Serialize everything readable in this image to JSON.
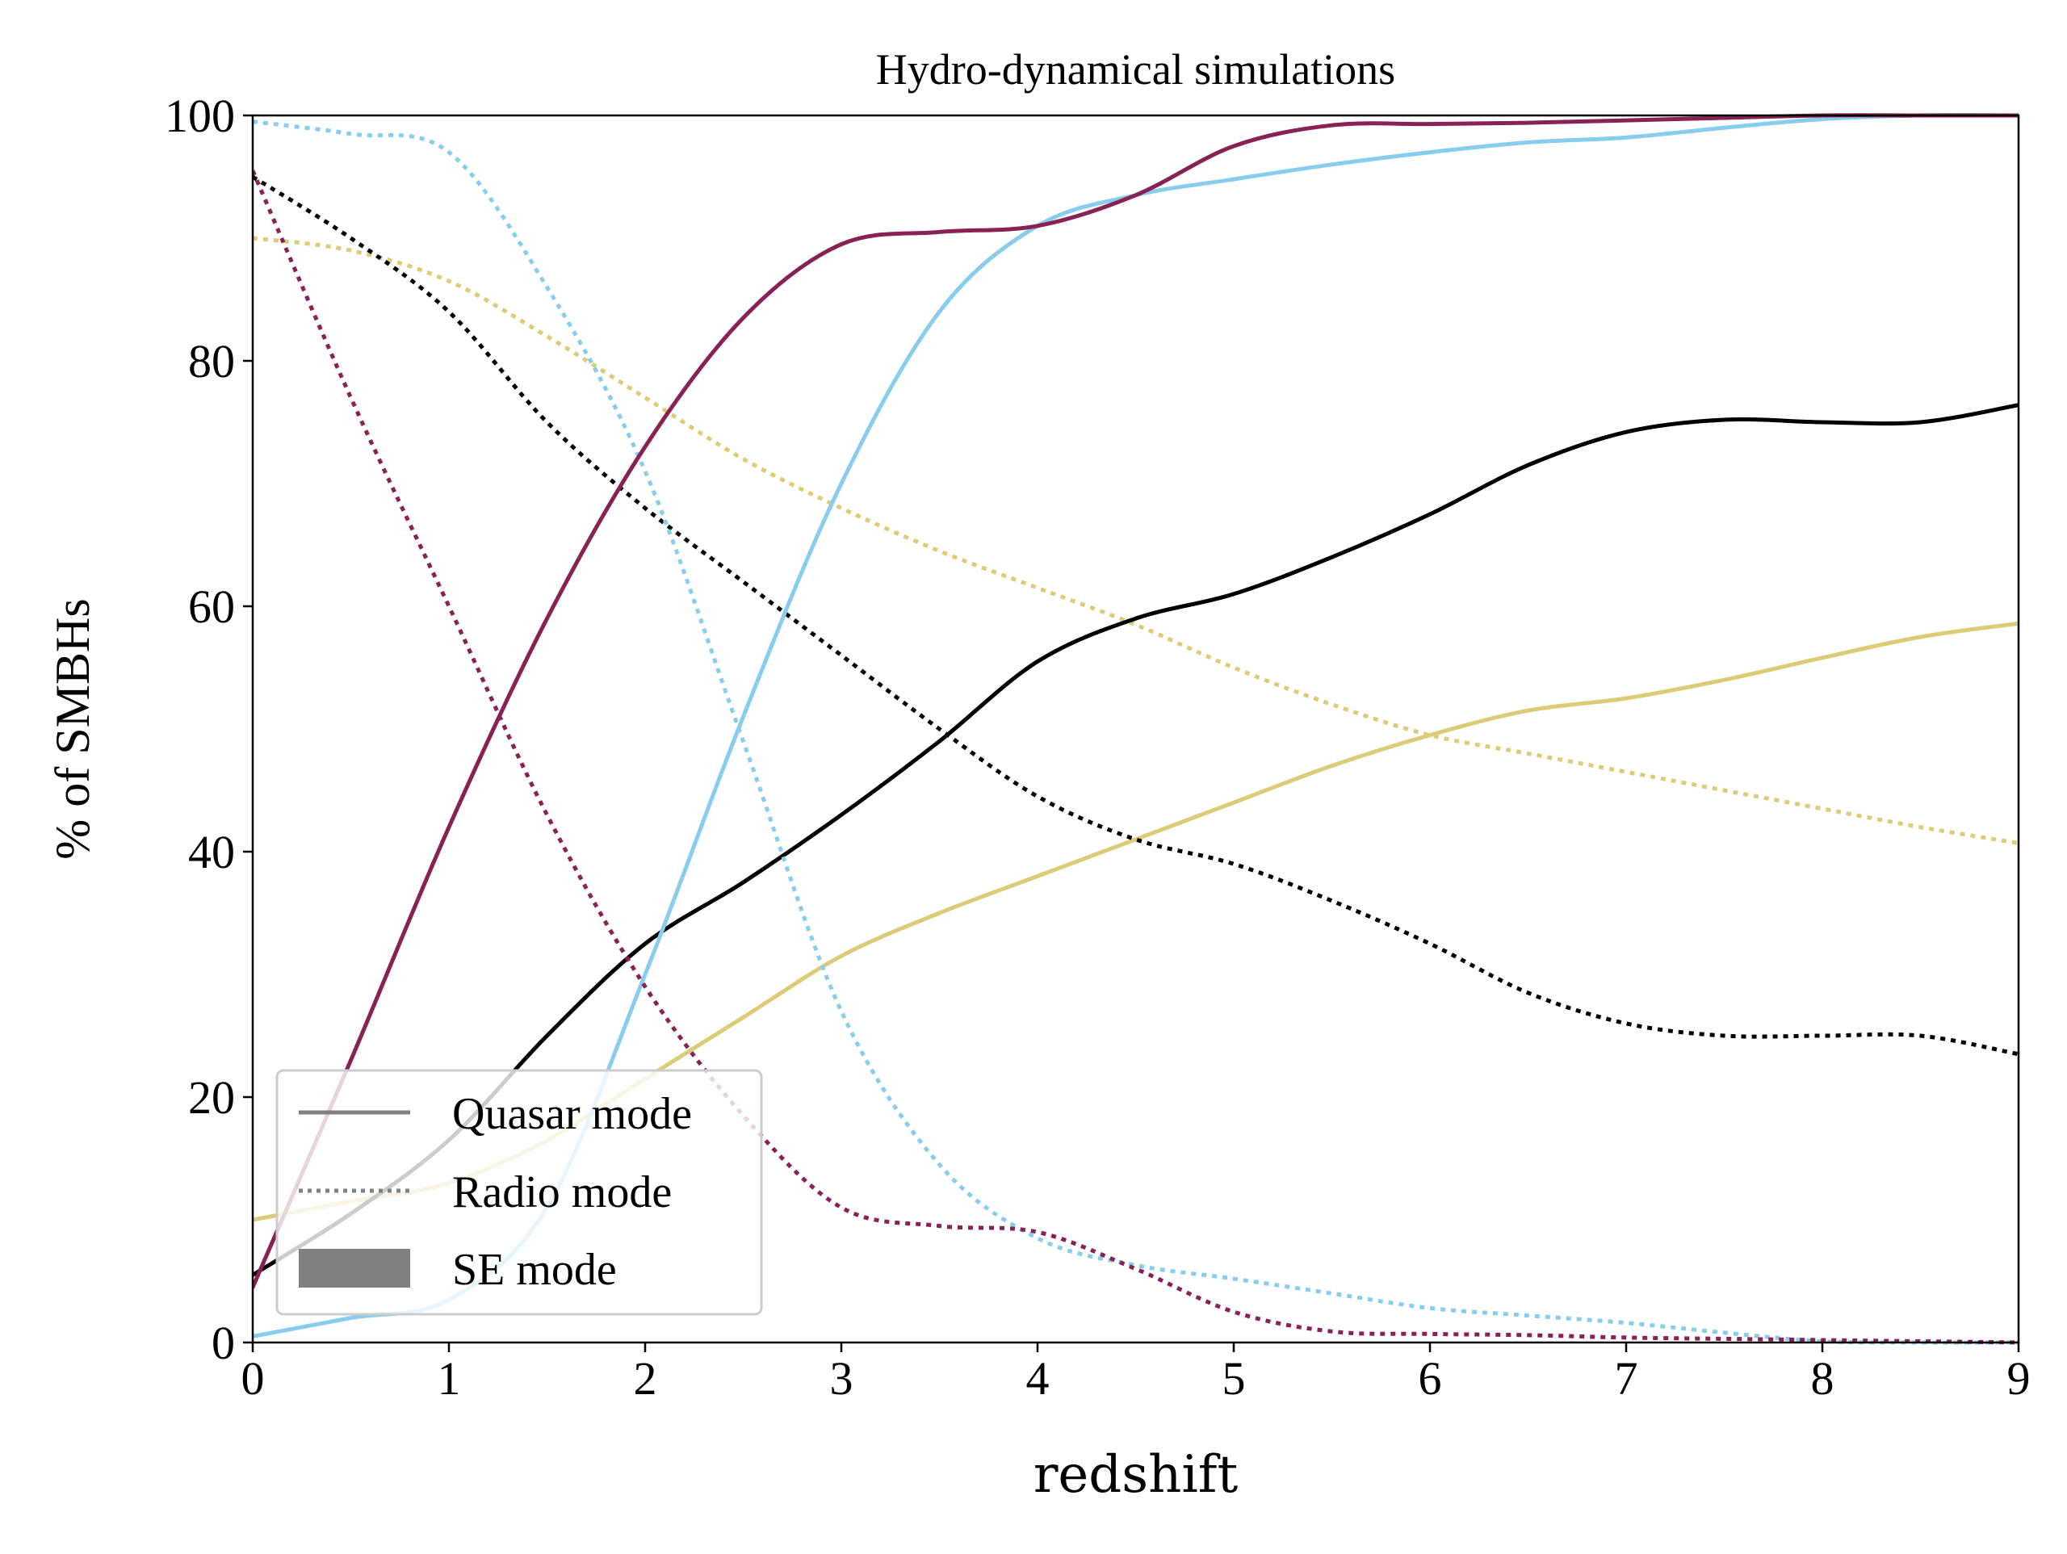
{
  "chart_data": {
    "type": "line",
    "title": "Hydro-dynamical simulations",
    "xlabel": "redshift",
    "ylabel": "% of SMBHs",
    "xlim": [
      0,
      9
    ],
    "ylim": [
      0,
      100
    ],
    "xticks": [
      0,
      1,
      2,
      3,
      4,
      5,
      6,
      7,
      8,
      9
    ],
    "yticks": [
      0,
      20,
      40,
      60,
      80,
      100
    ],
    "grid": false,
    "legend": {
      "placement": "lower-left",
      "entries": [
        {
          "label": "Quasar mode",
          "style": "solid"
        },
        {
          "label": "Radio mode",
          "style": "dotted"
        },
        {
          "label": "SE mode",
          "style": "patch"
        }
      ]
    },
    "series": [
      {
        "name": "yellow radio",
        "mode": "radio",
        "color": "#DDCC77",
        "x": [
          0,
          0.5,
          1,
          1.5,
          2,
          2.5,
          3,
          3.5,
          4,
          4.5,
          5,
          5.5,
          6,
          6.5,
          7,
          7.5,
          8,
          8.5,
          9
        ],
        "y": [
          90,
          89,
          86.5,
          82,
          77,
          72,
          68,
          64.5,
          61.5,
          58.5,
          55,
          52,
          49.5,
          48,
          46.5,
          45,
          43.5,
          42,
          40.7
        ]
      },
      {
        "name": "yellow quasar",
        "mode": "quasar",
        "color": "#DDCC77",
        "x": [
          0,
          0.5,
          1,
          1.5,
          2,
          2.5,
          3,
          3.5,
          4,
          4.5,
          5,
          5.5,
          6,
          6.5,
          7,
          7.5,
          8,
          8.5,
          9
        ],
        "y": [
          10,
          11.5,
          13,
          16.5,
          21.5,
          26.5,
          31.5,
          35,
          38,
          41,
          44,
          47,
          49.5,
          51.5,
          52.5,
          54,
          55.8,
          57.5,
          58.6
        ]
      },
      {
        "name": "black radio",
        "mode": "radio",
        "color": "#000000",
        "x": [
          0,
          0.5,
          1,
          1.5,
          2,
          2.5,
          3,
          3.5,
          4,
          4.5,
          5,
          5.5,
          6,
          6.5,
          7,
          7.5,
          8,
          8.5,
          9
        ],
        "y": [
          95,
          90,
          84,
          75,
          68,
          62,
          56,
          50,
          44.5,
          41,
          39,
          36,
          32.5,
          28.5,
          26,
          25,
          25,
          25,
          23.5
        ]
      },
      {
        "name": "black quasar",
        "mode": "quasar",
        "color": "#000000",
        "x": [
          0,
          0.5,
          1,
          1.5,
          2,
          2.5,
          3,
          3.5,
          4,
          4.5,
          5,
          5.5,
          6,
          6.5,
          7,
          7.5,
          8,
          8.5,
          9
        ],
        "y": [
          5.5,
          10.5,
          16.5,
          25,
          32.5,
          37.5,
          43,
          49,
          55.5,
          59,
          61,
          64,
          67.5,
          71.5,
          74.2,
          75.2,
          75,
          75,
          76.4
        ]
      },
      {
        "name": "blue radio",
        "mode": "radio",
        "color": "#88CCEE",
        "x": [
          0,
          0.5,
          1,
          1.5,
          2,
          2.5,
          3,
          3.5,
          4,
          4.5,
          5,
          5.5,
          6,
          6.5,
          7,
          7.5,
          8,
          8.5,
          9
        ],
        "y": [
          99.5,
          98.5,
          97,
          86,
          71,
          49,
          27,
          14.5,
          8.5,
          6.3,
          5.2,
          4,
          2.8,
          2.2,
          1.6,
          0.8,
          0.1,
          0,
          0
        ]
      },
      {
        "name": "blue quasar",
        "mode": "quasar",
        "color": "#88CCEE",
        "x": [
          0,
          0.5,
          1,
          1.5,
          2,
          2.5,
          3,
          3.5,
          4,
          4.5,
          5,
          5.5,
          6,
          6.5,
          7,
          7.5,
          8,
          8.5,
          9
        ],
        "y": [
          0.5,
          2,
          3.5,
          11,
          30,
          51,
          70,
          84,
          91,
          93.5,
          94.8,
          96,
          97,
          97.8,
          98.2,
          99,
          99.7,
          100,
          100
        ]
      },
      {
        "name": "purple radio",
        "mode": "radio",
        "color": "#882255",
        "x": [
          0,
          0.5,
          1,
          1.5,
          2,
          2.5,
          3,
          3.5,
          4,
          4.5,
          5,
          5.5,
          6,
          6.5,
          7,
          7.5,
          8,
          8.5,
          9
        ],
        "y": [
          95.5,
          77,
          60,
          43,
          29,
          18.5,
          11,
          9.5,
          9,
          6,
          2.5,
          0.9,
          0.7,
          0.6,
          0.4,
          0.3,
          0.2,
          0.1,
          0
        ]
      },
      {
        "name": "purple quasar",
        "mode": "quasar",
        "color": "#882255",
        "x": [
          0,
          0.5,
          1,
          1.5,
          2,
          2.5,
          3,
          3.5,
          4,
          4.5,
          5,
          5.5,
          6,
          6.5,
          7,
          7.5,
          8,
          8.5,
          9
        ],
        "y": [
          4.5,
          23,
          42,
          59,
          73,
          83.5,
          89.5,
          90.5,
          91,
          93.5,
          97.5,
          99.2,
          99.3,
          99.4,
          99.6,
          99.8,
          100,
          100,
          100
        ]
      }
    ]
  }
}
